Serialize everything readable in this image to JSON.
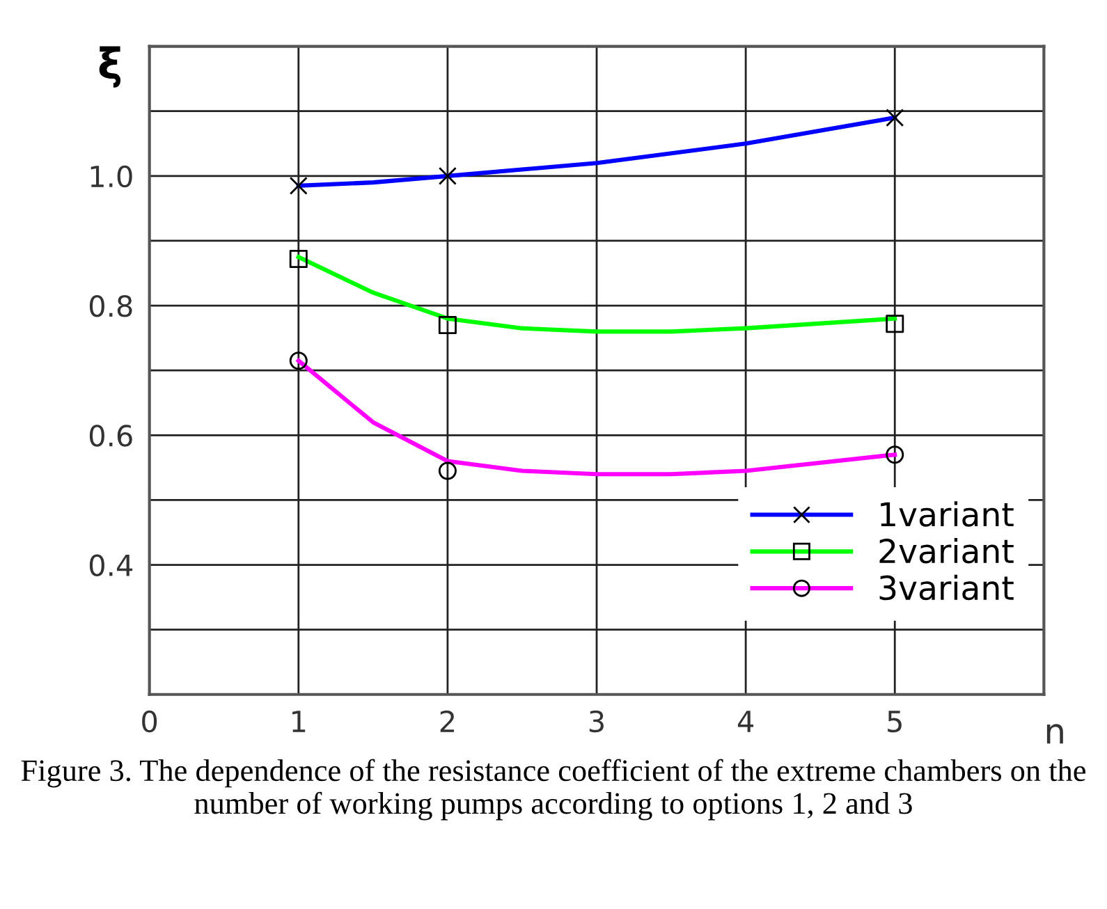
{
  "chart_data": {
    "type": "line",
    "xlabel": "n",
    "ylabel": "ξ",
    "xlim": [
      0,
      6
    ],
    "xticks": [
      0,
      1,
      2,
      3,
      4,
      5
    ],
    "ylim": [
      0.2,
      1.2
    ],
    "yticks": [
      {
        "value": 0.3,
        "label": null
      },
      0.4,
      {
        "value": 0.5,
        "label": null
      },
      0.6,
      {
        "value": 0.7,
        "label": null
      },
      0.8,
      {
        "value": 0.9,
        "label": null
      },
      {
        "value": 1.0,
        "label": "1.0"
      },
      {
        "value": 1.1,
        "label": null
      }
    ],
    "grid": true,
    "legend": "bottom right",
    "line_style": "solid",
    "marker": "none",
    "series": [
      {
        "name": "1variant",
        "color": "#0000ff",
        "x": [
          1,
          1.5,
          2,
          3,
          4,
          5
        ],
        "values": [
          0.985,
          0.99,
          1.0,
          1.02,
          1.05,
          1.09
        ]
      },
      {
        "name": "2variant",
        "color": "#00ff00",
        "x": [
          1,
          1.5,
          2,
          2.5,
          3,
          3.5,
          4,
          5
        ],
        "values": [
          0.875,
          0.82,
          0.78,
          0.765,
          0.76,
          0.76,
          0.765,
          0.78
        ]
      },
      {
        "name": "3variant",
        "color": "#ff00ff",
        "x": [
          1,
          1.5,
          2,
          2.5,
          3,
          3.5,
          4,
          5
        ],
        "values": [
          0.715,
          0.62,
          0.56,
          0.545,
          0.54,
          0.54,
          0.545,
          0.57
        ]
      },
      {
        "type": "scatter",
        "marker": "cross",
        "color": "#000000",
        "x": [
          1,
          2,
          5
        ],
        "values": [
          0.985,
          1.0,
          1.09
        ]
      },
      {
        "type": "scatter",
        "marker": "square",
        "color": "#000000",
        "x": [
          1,
          2,
          5
        ],
        "values": [
          0.872,
          0.77,
          0.772
        ]
      },
      {
        "type": "scatter",
        "marker": "circle",
        "color": "#000000",
        "x": [
          1,
          2,
          5
        ],
        "values": [
          0.715,
          0.545,
          0.57
        ]
      }
    ],
    "annotations": [
      "Figure 3.",
      "The dependence of the resistance coefficient of the extreme chambers on the number of working pumps according to options 1, 2 and 3"
    ]
  }
}
